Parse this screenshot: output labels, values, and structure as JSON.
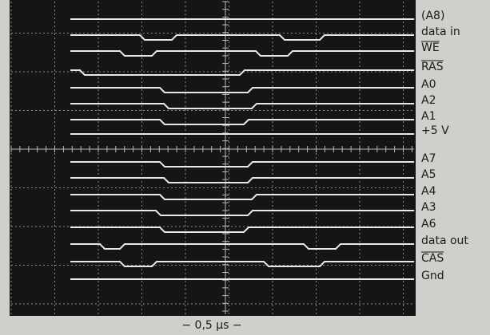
{
  "signals": [
    "(A8)",
    "data in",
    "WE",
    "RAS",
    "A0",
    "A2",
    "A1",
    "+5 V",
    "A7",
    "A5",
    "A4",
    "A3",
    "A6",
    "data out",
    "CAS",
    "Gnd"
  ],
  "overlined": [
    "WE",
    "RAS",
    "CAS"
  ],
  "timebase": "− 0,5 µs −"
}
